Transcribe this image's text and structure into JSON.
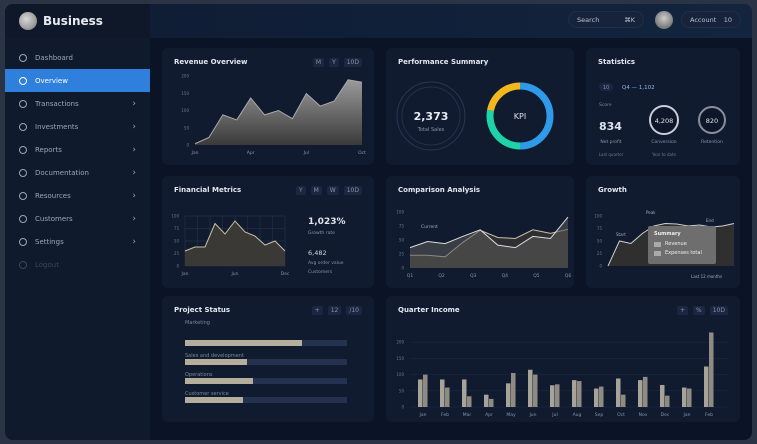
{
  "app": {
    "title": "Business"
  },
  "header": {
    "search_label": "Search",
    "search_kbd": "⌘K",
    "user_label": "Account",
    "user_badge": "10"
  },
  "sidebar": {
    "items": [
      {
        "label": "Dashboard",
        "icon": "circle-icon"
      },
      {
        "label": "Overview",
        "icon": "circle-icon",
        "active": true
      },
      {
        "label": "Transactions",
        "icon": "circle-icon"
      },
      {
        "label": "Investments",
        "icon": "circle-icon"
      },
      {
        "label": "Reports",
        "icon": "circle-icon"
      },
      {
        "label": "Documentation",
        "icon": "circle-icon"
      },
      {
        "label": "Resources",
        "icon": "circle-icon"
      },
      {
        "label": "Customers",
        "icon": "circle-icon"
      },
      {
        "label": "Settings",
        "icon": "circle-icon"
      },
      {
        "label": "Logout",
        "icon": "circle-icon"
      }
    ]
  },
  "accent": "#2f7fdc",
  "cards": {
    "revenue": {
      "title": "Revenue Overview",
      "controls": [
        "M",
        "Y",
        "10D"
      ],
      "xticks": [
        "Jan",
        "Apr",
        "Jul",
        "Oct"
      ],
      "yticks": [
        "0",
        "50",
        "100",
        "150",
        "200"
      ],
      "values": [
        2,
        12,
        48,
        40,
        75,
        48,
        55,
        42,
        82,
        62,
        70,
        104,
        100
      ]
    },
    "kpis": {
      "title": "Performance Summary",
      "ring_value": "2,373",
      "ring_caption": "Total Sales",
      "donut_value": "KPI",
      "donut_segments": [
        {
          "color": "#2f9be8",
          "share": 0.5
        },
        {
          "color": "#1fd3a8",
          "share": 0.28
        },
        {
          "color": "#f2b81c",
          "share": 0.22
        }
      ]
    },
    "stats": {
      "title": "Statistics",
      "filter": "10",
      "range": "Q4 — 1,102",
      "metric_label": "Score",
      "metric_value": "834",
      "ring1": "4,208",
      "ring2": "820",
      "captions": [
        "Net profit",
        "Conversion",
        "Retention"
      ],
      "sub_captions": [
        "Last quarter",
        "Year to date"
      ]
    },
    "financial": {
      "title": "Financial Metrics",
      "controls": [
        "Y",
        "M",
        "W",
        "10D"
      ],
      "values": [
        30,
        38,
        38,
        85,
        64,
        90,
        68,
        60,
        42,
        50,
        30
      ],
      "xticks": [
        "Jan",
        "Jun",
        "Dec"
      ],
      "yticks": [
        "0",
        "25",
        "50",
        "75",
        "100"
      ],
      "big_value": "1,023%",
      "big_caption": "Growth rate",
      "second_value": "6,482",
      "second_caption": "Avg order value",
      "third_caption": "Customers"
    },
    "comparison": {
      "title": "Comparison Analysis",
      "legend_label": "Current",
      "yticks": [
        "0",
        "25",
        "50",
        "75",
        "100"
      ],
      "xticks": [
        "Q1",
        "Q2",
        "Q3",
        "Q4",
        "Q5",
        "Q6"
      ],
      "series_a": [
        40,
        52,
        48,
        62,
        75,
        45,
        40,
        62,
        58,
        100
      ],
      "series_b": [
        25,
        25,
        22,
        50,
        74,
        60,
        58,
        75,
        68,
        76
      ]
    },
    "growth": {
      "title": "Growth",
      "yticks": [
        "0",
        "25",
        "50",
        "75",
        "100"
      ],
      "tooltip_title": "Summary",
      "tooltip_items": [
        "Revenue",
        "Expenses total"
      ],
      "label_a": "Start",
      "label_b": "Peak",
      "label_c": "End",
      "footer": "Last 12 months",
      "values": [
        0,
        50,
        45,
        65,
        80,
        85,
        84,
        80,
        82,
        78,
        80,
        85
      ]
    },
    "progress": {
      "title": "Project Status",
      "controls": [
        "+",
        "12",
        "/10"
      ],
      "items": [
        {
          "label": "Marketing",
          "pct": 0.72
        },
        {
          "label": "Sales and development",
          "pct": 0.38
        },
        {
          "label": "Operations",
          "pct": 0.42
        },
        {
          "label": "Customer service",
          "pct": 0.36
        }
      ]
    },
    "bars": {
      "title": "Quarter Income",
      "controls": [
        "+",
        "%",
        "10D"
      ],
      "yticks": [
        "0",
        "50",
        "100",
        "150",
        "200"
      ],
      "xticks": [
        "Jan",
        "Feb",
        "Mar",
        "Apr",
        "May",
        "Jun",
        "Jul",
        "Aug",
        "Sep",
        "Oct",
        "Nov",
        "Dec",
        "Jan",
        "Feb"
      ],
      "series_a": [
        85,
        85,
        85,
        38,
        73,
        115,
        67,
        83,
        57,
        88,
        83,
        68,
        60,
        125
      ],
      "series_b": [
        100,
        60,
        33,
        25,
        105,
        100,
        70,
        80,
        63,
        38,
        93,
        35,
        57,
        230
      ],
      "ylim": [
        0,
        250
      ]
    }
  }
}
